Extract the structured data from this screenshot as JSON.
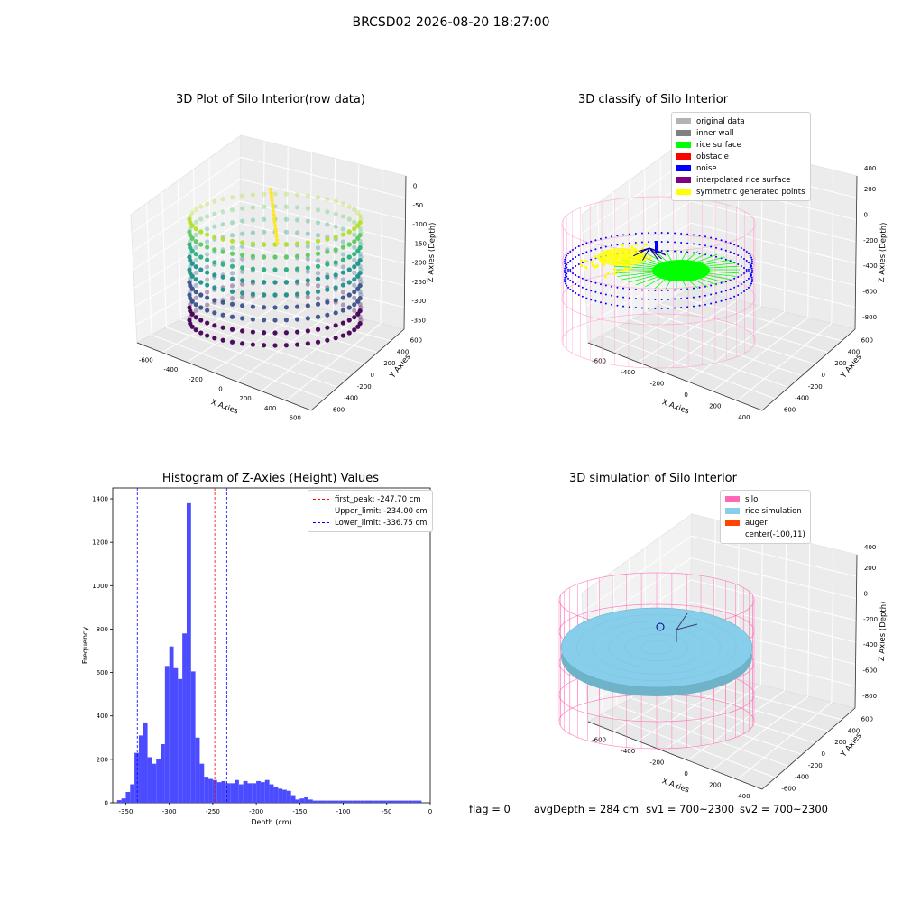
{
  "figure": {
    "suptitle": "BRCSD02 2026-08-20 18:27:00",
    "footer": {
      "flag": "flag = 0",
      "avg": "avgDepth = 284 cm",
      "sv1": "sv1 = 700~2300",
      "sv2": "sv2 = 700~2300"
    }
  },
  "chart_data": [
    {
      "type": "scatter",
      "subtype": "3d",
      "title": "3D Plot of Silo Interior(row data)",
      "xlabel": "X Axies",
      "ylabel": "Y Axies",
      "zlabel": "Z Axies (Depth)",
      "x_ticks": [
        "-600",
        "-400",
        "-200",
        "0",
        "200",
        "400",
        "600"
      ],
      "y_ticks": [
        "-600",
        "-400",
        "-200",
        "0",
        "200",
        "400",
        "600"
      ],
      "z_ticks": [
        "0",
        "-50",
        "-100",
        "-150",
        "-200",
        "-250",
        "-300",
        "-350"
      ],
      "colormap": "viridis",
      "grid": true
    },
    {
      "type": "scatter",
      "subtype": "3d",
      "title": "3D classify of Silo Interior",
      "xlabel": "X Axies",
      "ylabel": "Y Axies",
      "zlabel": "Z Axies (Depth)",
      "x_ticks": [
        "-600",
        "-400",
        "-200",
        "0",
        "200",
        "400"
      ],
      "y_ticks": [
        "-600",
        "-400",
        "-200",
        "0",
        "200",
        "400",
        "600"
      ],
      "z_ticks": [
        "200",
        "0",
        "-200",
        "-400",
        "-600",
        "-800"
      ],
      "z_top_tick": "400",
      "legend_position": "top-right",
      "legend": [
        {
          "label": "original data",
          "color": "#b3b3b3"
        },
        {
          "label": "inner wall",
          "color": "#808080"
        },
        {
          "label": "rice surface",
          "color": "#00ff00"
        },
        {
          "label": "obstacle",
          "color": "#ff0000"
        },
        {
          "label": "noise",
          "color": "#0000ff"
        },
        {
          "label": "interpolated rice surface",
          "color": "#800080"
        },
        {
          "label": "symmetric generated points",
          "color": "#ffff00"
        }
      ],
      "grid": true
    },
    {
      "type": "bar",
      "subtype": "histogram",
      "title": "Histogram of Z-Axies (Height) Values",
      "xlabel": "Depth (cm)",
      "ylabel": "Frequency",
      "xlim": [
        -365,
        0
      ],
      "ylim": [
        0,
        1450
      ],
      "x_ticks": [
        -350,
        -300,
        -250,
        -200,
        -150,
        -100,
        -50,
        0
      ],
      "y_ticks": [
        0,
        200,
        400,
        600,
        800,
        1000,
        1200,
        1400
      ],
      "bar_color": "#4b4bff",
      "bin_width": 5,
      "bin_starts": [
        -360,
        -355,
        -350,
        -345,
        -340,
        -335,
        -330,
        -325,
        -320,
        -315,
        -310,
        -305,
        -300,
        -295,
        -290,
        -285,
        -280,
        -275,
        -270,
        -265,
        -260,
        -255,
        -250,
        -245,
        -240,
        -235,
        -230,
        -225,
        -220,
        -215,
        -210,
        -205,
        -200,
        -195,
        -190,
        -185,
        -180,
        -175,
        -170,
        -165,
        -160,
        -155,
        -150,
        -145,
        -140,
        -135,
        -130,
        -125,
        -120,
        -115,
        -110,
        -105,
        -100,
        -95,
        -90,
        -85,
        -80,
        -75,
        -70,
        -65,
        -60,
        -55,
        -50,
        -45,
        -40,
        -35,
        -30,
        -25,
        -20,
        -15
      ],
      "values": [
        12,
        20,
        50,
        85,
        230,
        310,
        370,
        210,
        180,
        200,
        270,
        630,
        720,
        620,
        570,
        780,
        1380,
        605,
        300,
        180,
        120,
        110,
        105,
        95,
        100,
        90,
        90,
        105,
        85,
        100,
        90,
        90,
        100,
        95,
        105,
        85,
        75,
        65,
        60,
        55,
        35,
        15,
        20,
        25,
        15,
        10,
        10,
        10,
        10,
        10,
        10,
        10,
        10,
        10,
        10,
        10,
        10,
        10,
        10,
        10,
        10,
        10,
        10,
        10,
        10,
        10,
        10,
        10,
        10,
        10
      ],
      "vlines": [
        {
          "label": "first_peak: -247.70 cm",
          "x": -247.7,
          "color": "#ff0000"
        },
        {
          "label": "Upper_limit: -234.00 cm",
          "x": -234.0,
          "color": "#0000ff"
        },
        {
          "label": "Lower_limit: -336.75 cm",
          "x": -336.75,
          "color": "#0000ff"
        }
      ],
      "legend_position": "top-right"
    },
    {
      "type": "scatter",
      "subtype": "3d-surface",
      "title": "3D simulation of Silo Interior",
      "xlabel": "X Axies",
      "ylabel": "Y Axies",
      "zlabel": "Z Axies (Depth)",
      "x_ticks": [
        "-600",
        "-400",
        "-200",
        "0",
        "200",
        "400"
      ],
      "y_ticks": [
        "-600",
        "-400",
        "-200",
        "0",
        "200",
        "400",
        "600"
      ],
      "z_ticks": [
        "200",
        "0",
        "-200",
        "-400",
        "-600",
        "-800"
      ],
      "z_top_tick": "400",
      "legend_position": "top-right",
      "legend": [
        {
          "label": "silo",
          "color": "#ff69b4"
        },
        {
          "label": "rice simulation",
          "color": "#87ceeb"
        },
        {
          "label": "auger",
          "color": "#ff4500"
        },
        {
          "label": "center(-100,11)",
          "color": ""
        }
      ],
      "grid": true
    }
  ]
}
